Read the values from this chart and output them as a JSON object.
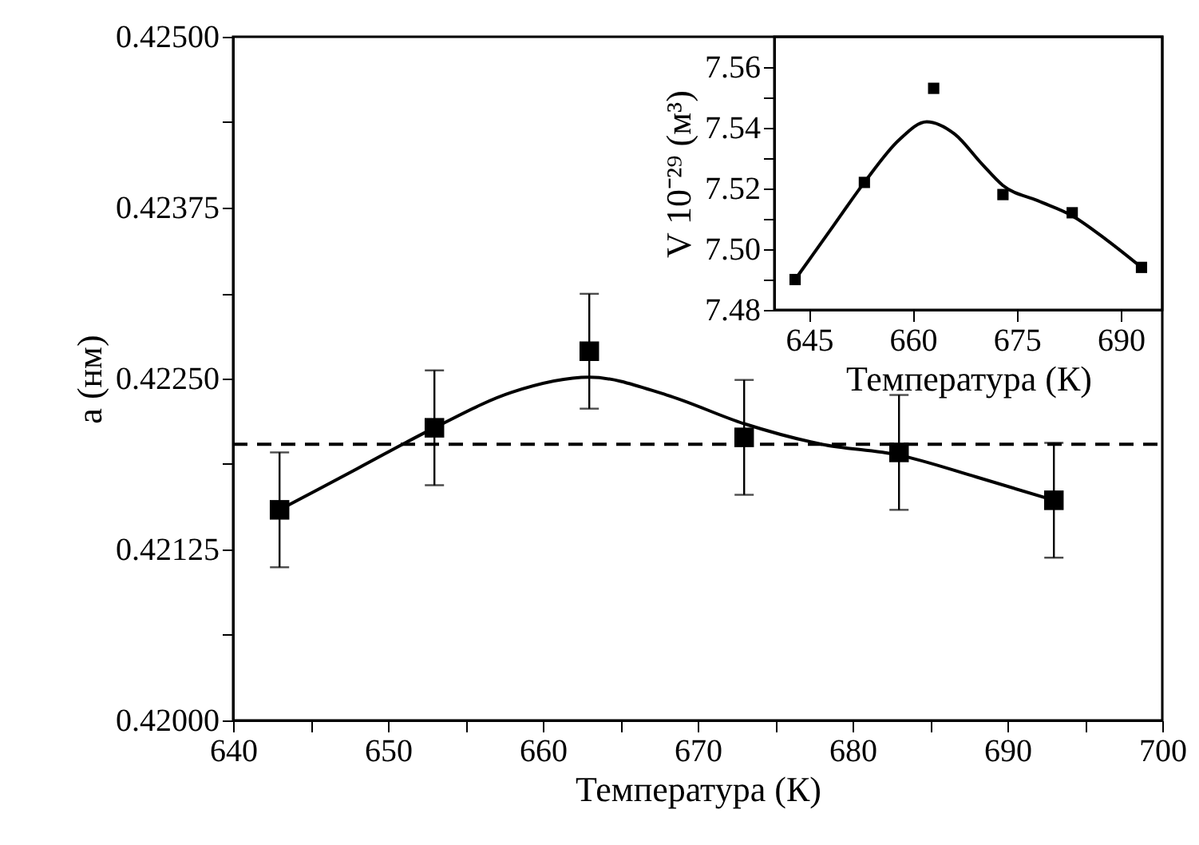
{
  "chart_data": [
    {
      "type": "scatter",
      "xlabel": "Температура (К)",
      "ylabel": "а (нм)",
      "xlim": [
        640,
        700
      ],
      "xticks": [
        640,
        {
          "value": 645,
          "label": null
        },
        650,
        {
          "value": 655,
          "label": null
        },
        660,
        {
          "value": 665,
          "label": null
        },
        670,
        {
          "value": 675,
          "label": null
        },
        680,
        {
          "value": 685,
          "label": null
        },
        690,
        {
          "value": 695,
          "label": null
        },
        700
      ],
      "ylim": [
        0.42,
        0.425
      ],
      "yticks": [
        {
          "value": 0.42,
          "label": "0.42000"
        },
        {
          "value": 0.420625,
          "label": null
        },
        {
          "value": 0.42125,
          "label": "0.42125"
        },
        {
          "value": 0.421875,
          "label": null
        },
        {
          "value": 0.4225,
          "label": "0.42250"
        },
        {
          "value": 0.423125,
          "label": null
        },
        {
          "value": 0.42375,
          "label": "0.42375"
        },
        {
          "value": 0.424375,
          "label": null
        },
        {
          "value": 0.425,
          "label": "0.42500"
        }
      ],
      "series": [
        {
          "type": "line",
          "color": "#000000",
          "marker": "none",
          "line_style": "solid",
          "x": [
            643,
            648,
            653,
            658,
            663,
            668,
            673,
            678,
            683,
            688,
            693
          ],
          "values": [
            0.42154,
            0.42184,
            0.42214,
            0.4224,
            0.42251,
            0.42238,
            0.42217,
            0.42202,
            0.42194,
            0.42178,
            0.42161
          ]
        },
        {
          "type": "scatter",
          "color": "#000000",
          "marker": "square",
          "x": [
            643,
            653,
            663,
            673,
            683,
            693
          ],
          "values": [
            0.42154,
            0.42214,
            0.4227,
            0.42207,
            0.42196,
            0.42161
          ],
          "errors": [
            0.00042,
            0.00042,
            0.00042,
            0.00042,
            0.00042,
            0.00042
          ]
        }
      ],
      "ref_lines": [
        {
          "axis": "y",
          "value": 0.42202,
          "line_style": "dashed",
          "color": "#000000"
        }
      ],
      "grid": false
    },
    {
      "type": "scatter",
      "xlabel": "Температура (К)",
      "ylabel": "V 10⁻²⁹ (м³)",
      "xlim": [
        640,
        696
      ],
      "xticks": [
        645,
        660,
        675,
        690
      ],
      "ylim": [
        7.48,
        7.57
      ],
      "yticks": [
        7.48,
        {
          "value": 7.49,
          "label": null
        },
        {
          "value": 7.5,
          "label": "7.50"
        },
        {
          "value": 7.51,
          "label": null
        },
        7.52,
        {
          "value": 7.53,
          "label": null
        },
        7.54,
        {
          "value": 7.55,
          "label": null
        },
        7.56
      ],
      "series": [
        {
          "type": "line",
          "color": "#000000",
          "marker": "none",
          "line_style": "solid",
          "x": [
            643,
            648,
            653,
            658,
            662,
            666,
            670,
            673,
            678,
            683,
            688,
            693
          ],
          "values": [
            7.49,
            7.506,
            7.522,
            7.536,
            7.542,
            7.538,
            7.528,
            7.521,
            7.516,
            7.511,
            7.503,
            7.494
          ]
        },
        {
          "type": "scatter",
          "color": "#000000",
          "marker": "square",
          "x": [
            643,
            653,
            663,
            673,
            683,
            693
          ],
          "values": [
            7.49,
            7.522,
            7.553,
            7.518,
            7.512,
            7.494
          ]
        }
      ],
      "grid": false
    }
  ]
}
